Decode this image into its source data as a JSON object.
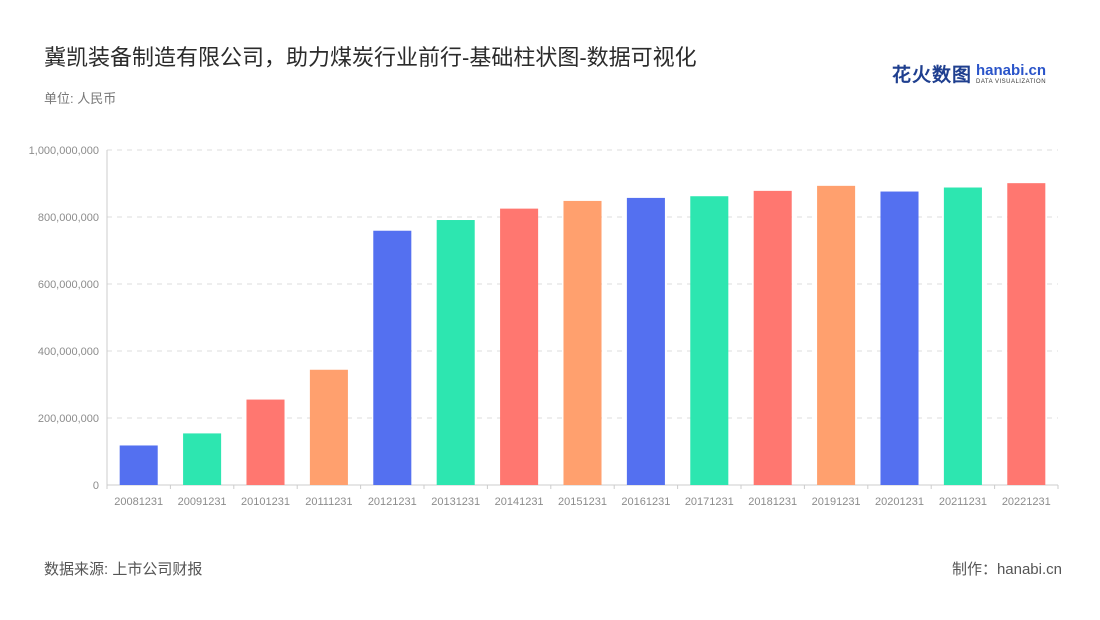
{
  "title": "冀凯装备制造有限公司，助力煤炭行业前行-基础柱状图-数据可视化",
  "unit": "单位: 人民币",
  "logo": {
    "cn": "花火数图",
    "en": "hanabi.cn",
    "en_sub": "DATA VISUALIZATION"
  },
  "footer": {
    "source": "数据来源: 上市公司财报",
    "made_by": "制作：hanabi.cn"
  },
  "colors": [
    "#5470f0",
    "#2de6b0",
    "#ff7770",
    "#ffa06e"
  ],
  "chart_data": {
    "type": "bar",
    "categories": [
      "20081231",
      "20091231",
      "20101231",
      "20111231",
      "20121231",
      "20131231",
      "20141231",
      "20151231",
      "20161231",
      "20171231",
      "20181231",
      "20191231",
      "20201231",
      "20211231",
      "20221231"
    ],
    "values": [
      118000000,
      154000000,
      255000000,
      344000000,
      759000000,
      791000000,
      825000000,
      848000000,
      857000000,
      862000000,
      878000000,
      893000000,
      876000000,
      888000000,
      901000000
    ],
    "ylim": [
      0,
      1000000000
    ],
    "yticks": [
      0,
      200000000,
      400000000,
      600000000,
      800000000,
      1000000000
    ],
    "ytick_labels": [
      "0",
      "200,000,000",
      "400,000,000",
      "600,000,000",
      "800,000,000",
      "1,000,000,000"
    ],
    "grid": true,
    "title": "冀凯装备制造有限公司，助力煤炭行业前行-基础柱状图-数据可视化",
    "xlabel": "",
    "ylabel": ""
  }
}
